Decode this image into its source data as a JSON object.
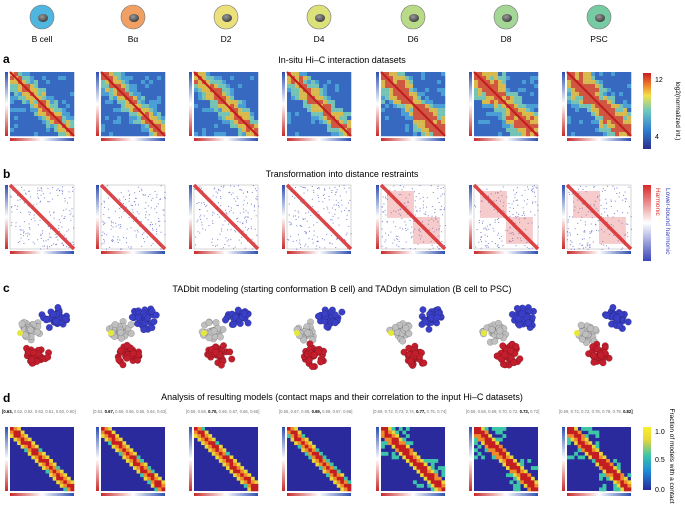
{
  "figure": {
    "stages": [
      "B cell",
      "Bα",
      "D2",
      "D4",
      "D6",
      "D8",
      "PSC"
    ],
    "stage_colors": [
      "#4fb6e0",
      "#f0a062",
      "#ece07a",
      "#dce27a",
      "#b9da86",
      "#a4d696",
      "#76cba3"
    ],
    "panels": {
      "a": {
        "letter": "a",
        "title": "In-situ Hi–C interaction datasets"
      },
      "b": {
        "letter": "b",
        "title": "Transformation into distance restraints"
      },
      "c": {
        "letter": "c",
        "title": "TADbit modeling (starting conformation B cell) and TADdyn simulation (B cell to PSC)"
      },
      "d": {
        "letter": "d",
        "title": "Analysis of resulting models (contact maps and their correlation to the input Hi–C datasets)",
        "correlation_rows": [
          [
            "0.63",
            "0.62",
            "0.62",
            "0.63",
            "0.61",
            "0.60",
            "0.60"
          ],
          [
            "0.63",
            "0.67",
            "0.66",
            "0.66",
            "0.65",
            "0.64",
            "0.63"
          ],
          [
            "0.66",
            "0.68",
            "0.70",
            "0.69",
            "0.67",
            "0.66",
            "0.65"
          ],
          [
            "0.65",
            "0.67",
            "0.68",
            "0.69",
            "0.68",
            "0.67",
            "0.66"
          ],
          [
            "0.69",
            "0.72",
            "0.73",
            "0.74",
            "0.77",
            "0.75",
            "0.74"
          ],
          [
            "0.66",
            "0.68",
            "0.69",
            "0.70",
            "0.72",
            "0.73",
            "0.72"
          ],
          [
            "0.69",
            "0.72",
            "0.72",
            "0.76",
            "0.78",
            "0.78",
            "0.82"
          ]
        ],
        "highlight_index": [
          0,
          1,
          2,
          3,
          4,
          5,
          6
        ]
      }
    },
    "colorbar_a": {
      "label": "log2(normalized int.)",
      "max_label": "12",
      "min_label": "4"
    },
    "legend_b": {
      "harmonic": "Harmonic",
      "lower_bound": "Lower-bound harmonic",
      "harmonic_color": "#d8282a",
      "lower_bound_color": "#3a45b8"
    },
    "colorbar_d": {
      "label": "Fraction of models with a contact",
      "max_label": "1.0",
      "mid_label": "0.5",
      "min_label": "0.0"
    }
  }
}
